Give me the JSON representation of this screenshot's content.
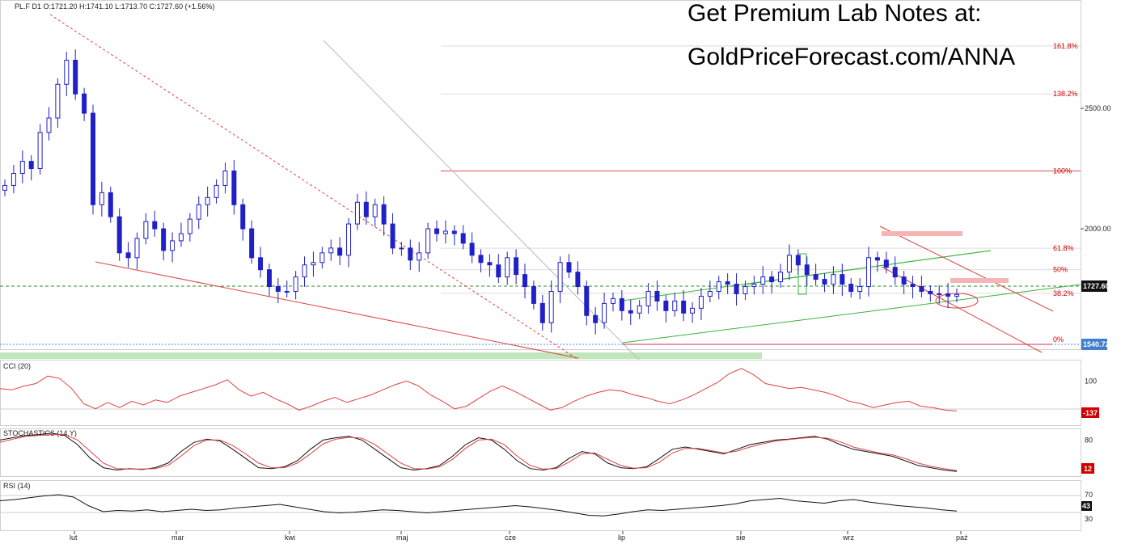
{
  "promo": {
    "line1": "Get Premium Lab Notes at:",
    "line2": "GoldPriceForecast.com/ANNA"
  },
  "chart_data": [
    {
      "type": "candlestick",
      "title": "PL.F  D1  O:1721.20  H:1741.10  L:1713.70  C:1727.60  (+1.56%)",
      "ylim": [
        1500,
        2950
      ],
      "y_ticks": [
        {
          "value": 2500,
          "label": "2500.00"
        },
        {
          "value": 2000,
          "label": "2000.00"
        }
      ],
      "x_ticks": [
        "lut",
        "mar",
        "kwi",
        "maj",
        "cze",
        "lip",
        "sie",
        "wrz",
        "paź"
      ],
      "last_price": {
        "value": 1727.6,
        "label": "1727.60"
      },
      "low_level": {
        "value": 1540.72,
        "label": "1540.72"
      },
      "fibonacci": [
        {
          "label": "161.8%",
          "value": 2759
        },
        {
          "label": "138.2%",
          "value": 2560
        },
        {
          "label": "100%",
          "value": 2240
        },
        {
          "label": "61.8%",
          "value": 1919
        },
        {
          "label": "50%",
          "value": 1830
        },
        {
          "label": "38.2%",
          "value": 1732
        },
        {
          "label": "0%",
          "value": 1540.72
        }
      ],
      "closes": [
        2180,
        2230,
        2280,
        2250,
        2400,
        2460,
        2600,
        2700,
        2560,
        2480,
        2100,
        2150,
        2050,
        1900,
        1880,
        1960,
        2030,
        2000,
        1910,
        1950,
        1980,
        2040,
        2100,
        2130,
        2180,
        2240,
        2100,
        2000,
        1880,
        1830,
        1760,
        1740,
        1740,
        1800,
        1850,
        1860,
        1900,
        1920,
        1890,
        2020,
        2110,
        2050,
        2100,
        2020,
        1920,
        1920,
        1870,
        1900,
        2000,
        1980,
        1990,
        1980,
        1940,
        1890,
        1860,
        1850,
        1800,
        1880,
        1810,
        1760,
        1690,
        1610,
        1740,
        1860,
        1820,
        1760,
        1640,
        1610,
        1690,
        1710,
        1660,
        1650,
        1680,
        1740,
        1700,
        1660,
        1700,
        1650,
        1670,
        1720,
        1740,
        1780,
        1770,
        1730,
        1760,
        1770,
        1800,
        1780,
        1820,
        1890,
        1850,
        1810,
        1790,
        1770,
        1810,
        1770,
        1740,
        1760,
        1880,
        1870,
        1840,
        1800,
        1770,
        1760,
        1740,
        1730,
        1730,
        1720,
        1727
      ]
    },
    {
      "type": "line",
      "title": "CCI (20)",
      "ylim": [
        -250,
        250
      ],
      "y_ticks": [
        {
          "value": 100,
          "label": "100"
        }
      ],
      "last_value": {
        "label": "-137"
      },
      "values": [
        40,
        30,
        60,
        80,
        140,
        120,
        40,
        -80,
        -120,
        -70,
        -110,
        -60,
        -90,
        -50,
        -70,
        -20,
        10,
        40,
        70,
        110,
        30,
        -20,
        10,
        -40,
        -80,
        -130,
        -100,
        -60,
        -30,
        -70,
        -40,
        -10,
        30,
        70,
        100,
        60,
        -10,
        -60,
        -120,
        -100,
        -40,
        20,
        60,
        20,
        -30,
        -80,
        -130,
        -110,
        -60,
        -20,
        10,
        30,
        20,
        -10,
        -30,
        -60,
        -80,
        -50,
        -10,
        40,
        90,
        160,
        200,
        150,
        80,
        60,
        40,
        50,
        30,
        10,
        -20,
        -60,
        -80,
        -110,
        -90,
        -70,
        -60,
        -100,
        -110,
        -130,
        -137
      ]
    },
    {
      "type": "line",
      "title": "STOCHASTICS (14,Y)",
      "ylim": [
        0,
        100
      ],
      "y_ticks": [
        {
          "value": 80,
          "label": "80"
        }
      ],
      "last_value": {
        "label": "12"
      },
      "series": [
        {
          "values": [
            80,
            85,
            90,
            92,
            95,
            90,
            70,
            40,
            20,
            15,
            18,
            16,
            20,
            30,
            55,
            75,
            82,
            78,
            60,
            40,
            20,
            18,
            22,
            35,
            60,
            80,
            85,
            88,
            80,
            60,
            40,
            20,
            15,
            18,
            25,
            45,
            70,
            85,
            80,
            60,
            35,
            18,
            15,
            20,
            40,
            55,
            50,
            30,
            20,
            18,
            22,
            40,
            60,
            65,
            60,
            55,
            50,
            60,
            70,
            75,
            80,
            82,
            85,
            88,
            82,
            70,
            60,
            55,
            50,
            45,
            35,
            25,
            20,
            15,
            12
          ]
        },
        {
          "values": [
            75,
            82,
            88,
            90,
            92,
            92,
            80,
            55,
            30,
            18,
            17,
            17,
            18,
            25,
            45,
            68,
            80,
            80,
            68,
            50,
            30,
            20,
            20,
            30,
            50,
            72,
            82,
            86,
            84,
            70,
            50,
            30,
            18,
            17,
            22,
            38,
            62,
            80,
            82,
            70,
            45,
            25,
            17,
            18,
            32,
            50,
            52,
            38,
            25,
            19,
            20,
            32,
            52,
            62,
            62,
            57,
            52,
            56,
            65,
            72,
            78,
            81,
            84,
            86,
            84,
            76,
            65,
            58,
            52,
            48,
            40,
            30,
            23,
            18,
            14
          ]
        }
      ]
    },
    {
      "type": "line",
      "title": "RSI (14)",
      "ylim": [
        10,
        90
      ],
      "y_ticks": [
        {
          "value": 70,
          "label": "70"
        },
        {
          "value": 30,
          "label": "30"
        }
      ],
      "last_value": {
        "label": "43"
      },
      "values": [
        60,
        62,
        65,
        68,
        70,
        66,
        52,
        42,
        44,
        43,
        45,
        42,
        44,
        46,
        44,
        45,
        48,
        50,
        52,
        54,
        50,
        46,
        42,
        40,
        41,
        43,
        45,
        44,
        42,
        40,
        42,
        44,
        46,
        48,
        50,
        52,
        50,
        47,
        44,
        40,
        36,
        35,
        38,
        42,
        45,
        44,
        46,
        48,
        50,
        52,
        55,
        60,
        62,
        64,
        60,
        58,
        56,
        60,
        62,
        58,
        55,
        52,
        50,
        48,
        45,
        43
      ]
    }
  ]
}
